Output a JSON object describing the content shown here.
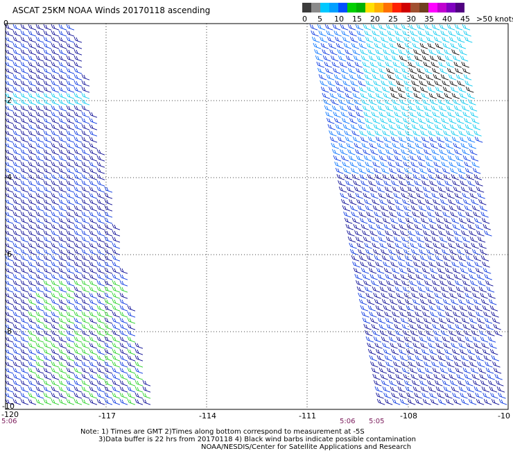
{
  "title": "ASCAT 25KM NOAA Winds 20170118 ascending",
  "colorbar": {
    "labels": [
      "0",
      "5",
      "10",
      "15",
      "20",
      "25",
      "30",
      "35",
      "40",
      "45",
      ">50 knots"
    ],
    "colors": [
      "#3c3c3c",
      "#8a8a8a",
      "#00c8ff",
      "#00a0ff",
      "#0050ff",
      "#00d000",
      "#00b000",
      "#ffe000",
      "#ffb000",
      "#ff7000",
      "#ff2000",
      "#d00000",
      "#a05030",
      "#704020",
      "#ff00ff",
      "#c000d0",
      "#8000c0",
      "#500080"
    ]
  },
  "axes": {
    "x_ticks": [
      "-120",
      "-117",
      "-114",
      "-111",
      "-108",
      "-10"
    ],
    "y_ticks": [
      "0",
      "-2",
      "-4",
      "-6",
      "-8",
      "-10"
    ]
  },
  "times": {
    "left_start": "5:06",
    "swath2_a": "5:06",
    "swath2_b": "5:05"
  },
  "notes": {
    "line1": "Note: 1) Times are GMT 2)Times along bottom correspond to measurement at -5S",
    "line2": "3)Data buffer is 22 hrs from 20170118 4) Black wind barbs indicate possible contamination",
    "line3": "NOAA/NESDIS/Center for Satellite Applications and Research"
  },
  "barb_colors": {
    "dark_blue": "#000090",
    "blue": "#0030e0",
    "light_blue": "#0070ff",
    "cyan": "#00c8f0",
    "green": "#20d020",
    "black": "#000000"
  }
}
